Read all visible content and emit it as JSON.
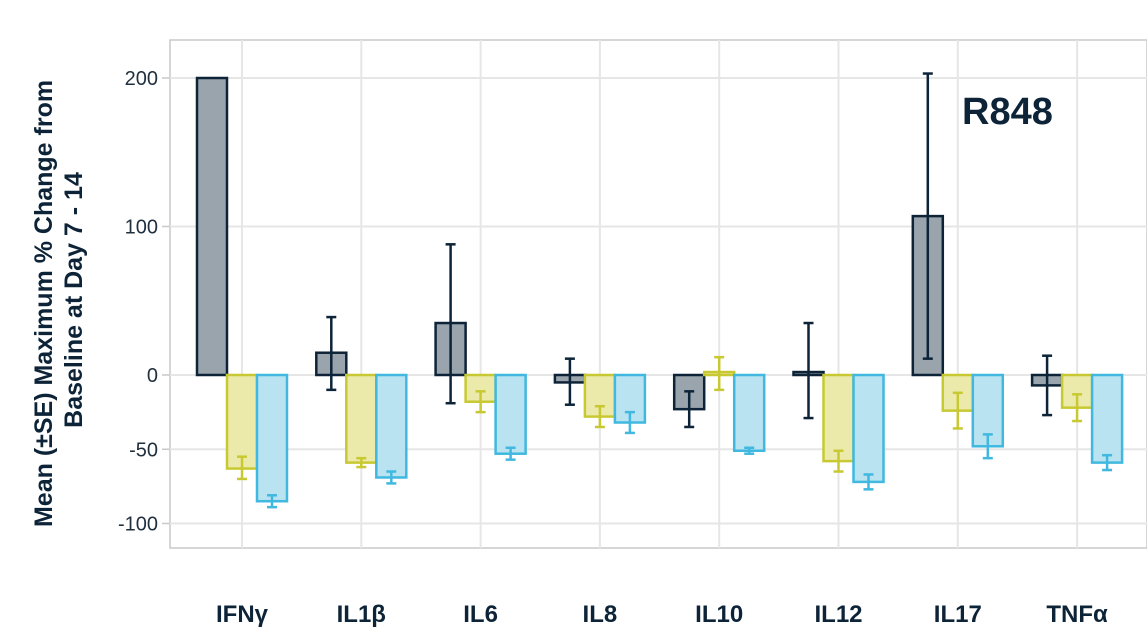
{
  "chart_data": {
    "type": "bar",
    "categories": [
      "IFNγ",
      "IL1β",
      "IL6",
      "IL8",
      "IL10",
      "IL12",
      "IL17",
      "TNFα"
    ],
    "ylabel_lines": [
      "Mean (±SE) Maximum % Change from",
      "Baseline at Day 7 - 14"
    ],
    "xlabel": "",
    "yticks": [
      200,
      100,
      0,
      -50,
      -100
    ],
    "ylim": [
      -115,
      225
    ],
    "grid": true,
    "annotation": "R848",
    "series": [
      {
        "color": "#9aa4ad",
        "stroke": "#0d2438",
        "values": [
          200,
          15,
          35,
          -5,
          -23,
          2,
          107,
          -7
        ],
        "err_low": [
          null,
          -10,
          -19,
          -20,
          -35,
          -29,
          11,
          -27
        ],
        "err_high": [
          null,
          39,
          88,
          11,
          -11,
          35,
          203,
          13
        ]
      },
      {
        "color": "#eceaab",
        "stroke": "#c8c932",
        "values": [
          -63,
          -59,
          -18,
          -28,
          2,
          -58,
          -24,
          -22
        ],
        "err_low": [
          -70,
          -62,
          -25,
          -35,
          -10,
          -65,
          -36,
          -31
        ],
        "err_high": [
          -55,
          -56,
          -11,
          -21,
          12,
          -51,
          -12,
          -13
        ]
      },
      {
        "color": "#b9e3f0",
        "stroke": "#40b8df",
        "values": [
          -85,
          -69,
          -53,
          -32,
          -51,
          -72,
          -48,
          -59
        ],
        "err_low": [
          -89,
          -73,
          -57,
          -39,
          -53,
          -77,
          -56,
          -64
        ],
        "err_high": [
          -81,
          -65,
          -49,
          -25,
          -49,
          -67,
          -40,
          -54
        ]
      }
    ]
  }
}
